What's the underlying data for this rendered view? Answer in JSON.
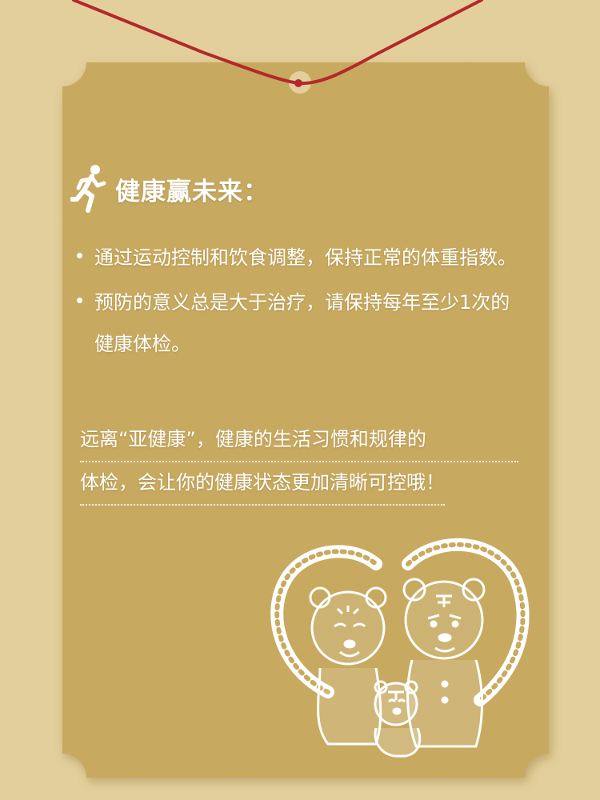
{
  "theme": {
    "background": "#e3cf9c",
    "card": "#c9aa5e",
    "string": "#b4282a",
    "text": "#ffffff"
  },
  "card": {
    "title_icon": "running-person-icon",
    "title": "健康赢未来：",
    "bullets": [
      "通过运动控制和饮食调整，保持正常的体重指数。",
      "预防的意义总是大于治疗，请保持每年至少1次的健康体检。"
    ],
    "quote_lines": [
      "远离“亚健康”，健康的生活习惯和规律的",
      "体检，会让你的健康状态更加清晰可控哦！"
    ],
    "illustration": "tiger-family-papercut"
  }
}
